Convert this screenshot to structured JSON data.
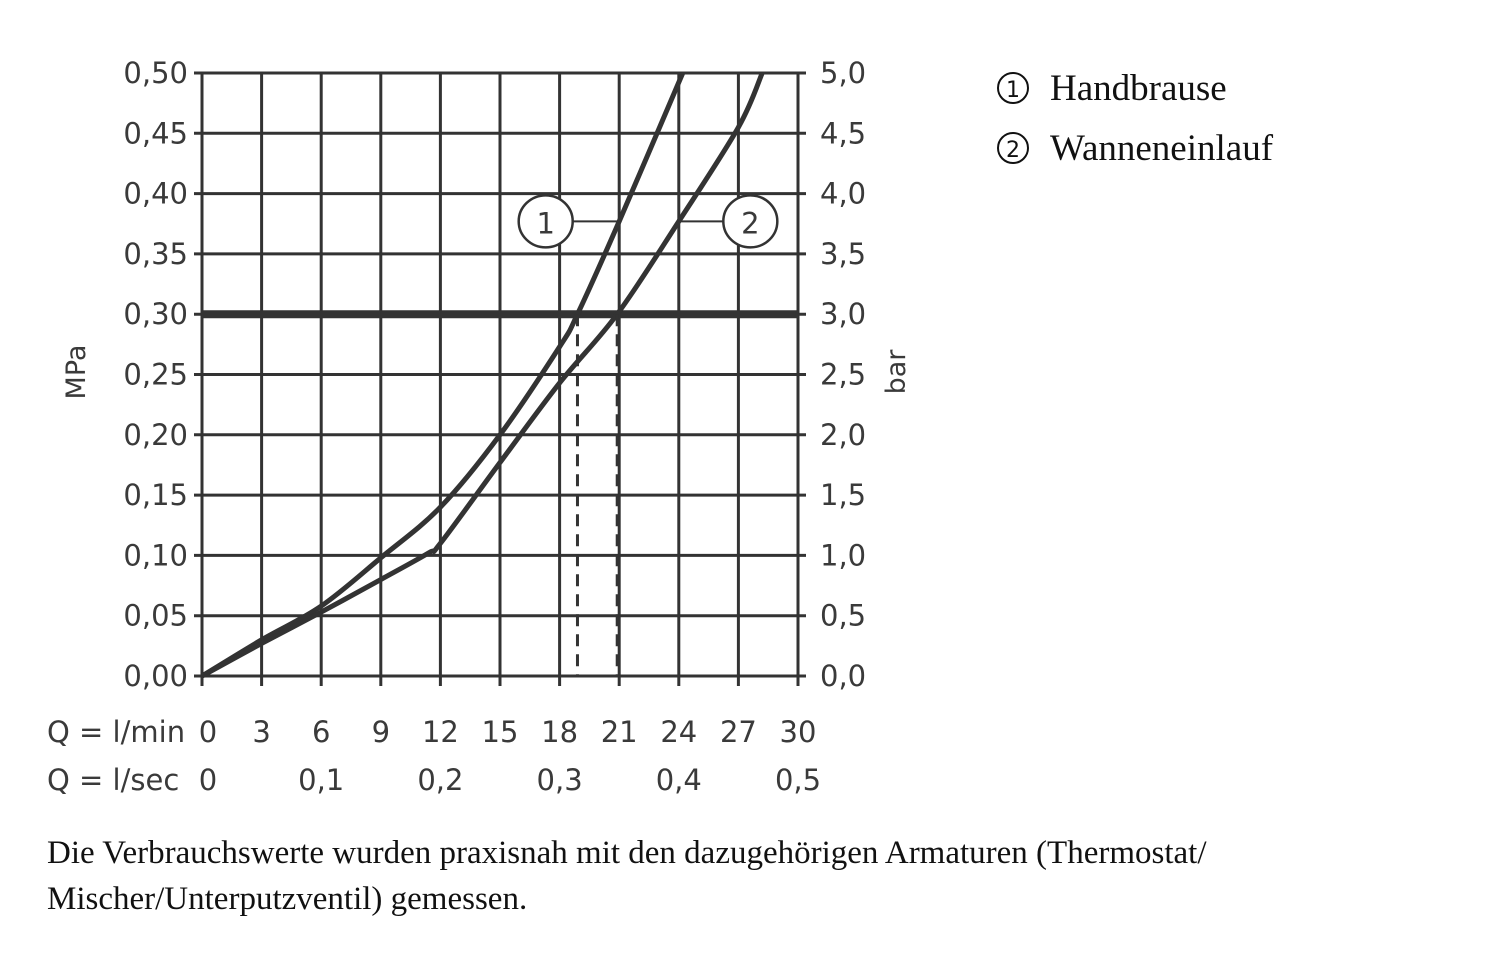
{
  "chart_data": {
    "type": "line",
    "x_rows": [
      {
        "label": "Q = l/min",
        "ticks": [
          "0",
          "3",
          "6",
          "9",
          "12",
          "15",
          "18",
          "21",
          "24",
          "27",
          "30"
        ],
        "values": [
          0,
          3,
          6,
          9,
          12,
          15,
          18,
          21,
          24,
          27,
          30
        ]
      },
      {
        "label": "Q = l/sec",
        "ticks": [
          "0",
          "0,1",
          "0,2",
          "0,3",
          "0,4",
          "0,5"
        ],
        "values": [
          0,
          6,
          12,
          18,
          24,
          30
        ]
      }
    ],
    "xlim": [
      0,
      30
    ],
    "ylabel": "MPa",
    "ylim": [
      0,
      0.5
    ],
    "y_ticks": [
      "0,00",
      "0,05",
      "0,10",
      "0,15",
      "0,20",
      "0,25",
      "0,30",
      "0,35",
      "0,40",
      "0,45",
      "0,50"
    ],
    "y2label": "bar",
    "y2_ticks": [
      "0,0",
      "0,5",
      "1,0",
      "1,5",
      "2,0",
      "2,5",
      "3,0",
      "3,5",
      "4,0",
      "4,5",
      "5,0"
    ],
    "grid": true,
    "reference_line": {
      "y": 0.3
    },
    "series": [
      {
        "name": "Handbrause",
        "marker": "1",
        "x": [
          0,
          3,
          6,
          9,
          12,
          15,
          18,
          18.9,
          21,
          24.2
        ],
        "y": [
          0,
          0.03,
          0.058,
          0.098,
          0.14,
          0.2,
          0.273,
          0.3,
          0.377,
          0.5
        ],
        "drop_x": 18.9
      },
      {
        "name": "Wanneneinlauf",
        "marker": "2",
        "x": [
          0,
          3,
          6,
          9,
          11.4,
          12,
          15,
          18,
          20.9,
          24,
          27,
          28.2
        ],
        "y": [
          0,
          0.027,
          0.053,
          0.08,
          0.102,
          0.11,
          0.177,
          0.243,
          0.3,
          0.377,
          0.455,
          0.5
        ],
        "drop_x": 20.9
      }
    ],
    "legend": {
      "placement": "right",
      "entries": [
        {
          "marker": "①",
          "label": "Handbrause"
        },
        {
          "marker": "②",
          "label": "Wanneneinlauf"
        }
      ]
    },
    "color": "#333333"
  },
  "footnote": "Die Verbrauchswerte wurden praxisnah mit den dazugehörigen Armaturen (Thermostat/ Mischer/Unterputzventil) gemessen."
}
